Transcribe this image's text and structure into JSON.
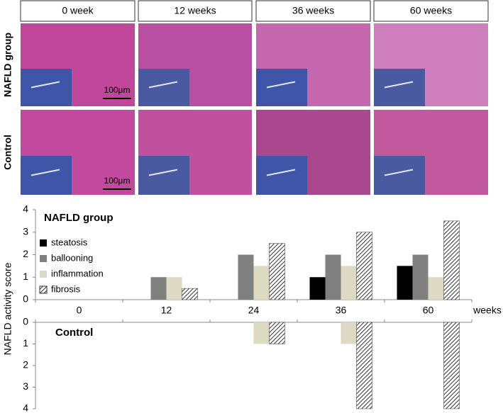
{
  "panels": {
    "columns": [
      "0 week",
      "12 weeks",
      "36 weeks",
      "60 weeks"
    ],
    "rows": [
      "NAFLD group",
      "Control"
    ],
    "scale_bar": "100µm"
  },
  "chart_data": [
    {
      "type": "bar",
      "title": "NAFLD group",
      "y_label": "NAFLD activity score",
      "x_label": "weeks",
      "categories": [
        "0",
        "12",
        "24",
        "36",
        "60"
      ],
      "series": [
        {
          "name": "steatosis",
          "color": "#000000",
          "values": [
            0,
            0,
            0,
            1,
            1.5
          ]
        },
        {
          "name": "ballooning",
          "color": "#808080",
          "values": [
            0,
            1,
            2,
            2,
            2
          ]
        },
        {
          "name": "inflammation",
          "color": "#ddd9c3",
          "values": [
            0,
            1,
            1.5,
            1.5,
            1
          ]
        },
        {
          "name": "fibrosis",
          "color": "#333333",
          "hatch": true,
          "values": [
            0,
            0.5,
            2.5,
            3,
            3.5
          ]
        }
      ],
      "ylim": [
        0,
        4
      ],
      "yticks": [
        0,
        1,
        2,
        3,
        4
      ]
    },
    {
      "type": "bar",
      "title": "Control",
      "inverted": true,
      "series": [
        {
          "color": "#000000",
          "values": [
            0,
            0,
            0,
            0,
            0
          ]
        },
        {
          "color": "#808080",
          "values": [
            0,
            0,
            0,
            0,
            0
          ]
        },
        {
          "color": "#ddd9c3",
          "values": [
            0,
            0,
            1,
            1,
            0
          ]
        },
        {
          "color": "#333333",
          "hatch": true,
          "values": [
            0,
            0,
            1,
            4,
            4
          ]
        }
      ],
      "ylim": [
        0,
        4
      ],
      "yticks": [
        0,
        1,
        2,
        3,
        4
      ]
    }
  ]
}
